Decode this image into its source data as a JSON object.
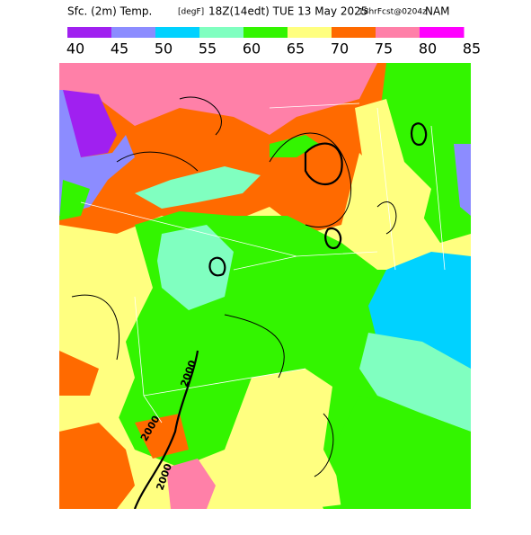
{
  "header": {
    "title_parts": [
      "Sfc. (2m) Temp.",
      "[degF]",
      "18Z(14edt) TUE 13 May 2025",
      "18hrFcst@0204z",
      "NAM"
    ]
  },
  "colorbar": {
    "colors": [
      "#a020f0",
      "#8c8cff",
      "#00d2ff",
      "#80ffc0",
      "#33f500",
      "#ffff80",
      "#ff6a00",
      "#ff80a8",
      "#ff00ff"
    ],
    "ticks": [
      40,
      45,
      50,
      55,
      60,
      65,
      70,
      75,
      80,
      85
    ]
  },
  "contour_labels": [
    "2000",
    "2000",
    "2000"
  ]
}
